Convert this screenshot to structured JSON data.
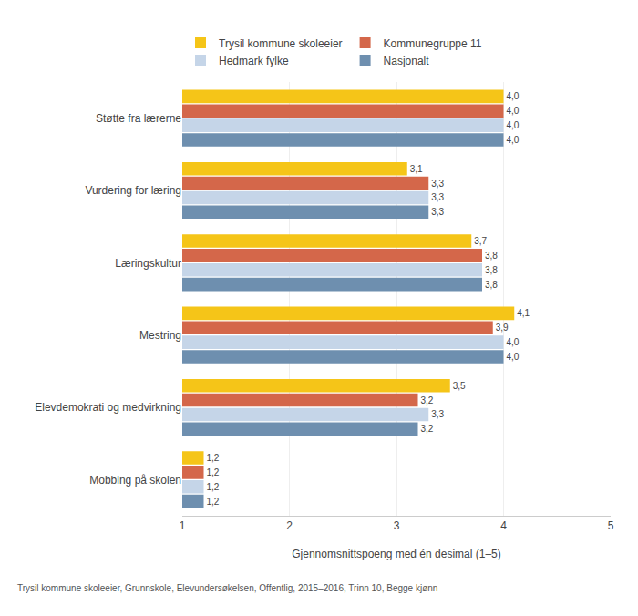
{
  "chart_data": {
    "type": "bar",
    "orientation": "horizontal",
    "categories": [
      "Støtte fra lærerne",
      "Vurdering for læring",
      "Læringskultur",
      "Mestring",
      "Elevdemokrati og medvirkning",
      "Mobbing på skolen"
    ],
    "series": [
      {
        "name": "Trysil kommune skoleeier",
        "color": "#F5C518",
        "values": [
          4.0,
          3.1,
          3.7,
          4.1,
          3.5,
          1.2
        ],
        "value_labels": [
          "4,0",
          "3,1",
          "3,7",
          "4,1",
          "3,5",
          "1,2"
        ]
      },
      {
        "name": "Kommunegruppe 11",
        "color": "#D4674A",
        "values": [
          4.0,
          3.3,
          3.8,
          3.9,
          3.2,
          1.2
        ],
        "value_labels": [
          "4,0",
          "3,3",
          "3,8",
          "3,9",
          "3,2",
          "1,2"
        ]
      },
      {
        "name": "Hedmark fylke",
        "color": "#C5D5E8",
        "values": [
          4.0,
          3.3,
          3.8,
          4.0,
          3.3,
          1.2
        ],
        "value_labels": [
          "4,0",
          "3,3",
          "3,8",
          "4,0",
          "3,3",
          "1,2"
        ]
      },
      {
        "name": "Nasjonalt",
        "color": "#6E8FAF",
        "values": [
          4.0,
          3.3,
          3.8,
          4.0,
          3.2,
          1.2
        ],
        "value_labels": [
          "4,0",
          "3,3",
          "3,8",
          "4,0",
          "3,2",
          "1,2"
        ]
      }
    ],
    "xlabel": "Gjennomsnittspoeng med én desimal (1–5)",
    "xlim": [
      1,
      5
    ],
    "xticks": [
      1,
      2,
      3,
      4,
      5
    ],
    "grid": true,
    "legend": "top",
    "data_labels": true,
    "annotations": [
      "Trysil kommune skoleeier, Grunnskole, Elevundersøkelsen, Offentlig, 2015–2016, Trinn 10, Begge kjønn"
    ]
  }
}
